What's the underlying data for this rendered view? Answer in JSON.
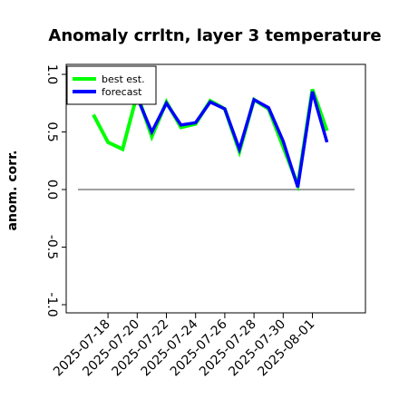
{
  "chart_data": {
    "type": "line",
    "title": "Anomaly crrltn, layer 3 temperature",
    "xlabel": "",
    "ylabel": "anom. corr.",
    "ylim": [
      -1.0,
      1.0
    ],
    "yticks": [
      "-1.0",
      "-0.5",
      "0.0",
      "0.5",
      "1.0"
    ],
    "ytick_values": [
      -1.0,
      -0.5,
      0.0,
      0.5,
      1.0
    ],
    "x": [
      "2025-07-17",
      "2025-07-18",
      "2025-07-19",
      "2025-07-20",
      "2025-07-21",
      "2025-07-22",
      "2025-07-23",
      "2025-07-24",
      "2025-07-25",
      "2025-07-26",
      "2025-07-27",
      "2025-07-28",
      "2025-07-29",
      "2025-07-30",
      "2025-07-31",
      "2025-08-01",
      "2025-08-02"
    ],
    "xticks": [
      "2025-07-18",
      "2025-07-20",
      "2025-07-22",
      "2025-07-24",
      "2025-07-26",
      "2025-07-28",
      "2025-07-30",
      "2025-08-01"
    ],
    "xtick_colors": [
      "#000000",
      "#000000",
      "#000000",
      "#008000",
      "#000000",
      "#000000",
      "#000000",
      "#000000"
    ],
    "reference_line": 0.0,
    "grid": false,
    "legend_position": "top-left",
    "series": [
      {
        "name": "best est.",
        "color": "#00ff00",
        "values": [
          0.65,
          0.41,
          0.35,
          0.83,
          0.46,
          0.76,
          0.54,
          0.57,
          0.77,
          0.7,
          0.33,
          0.78,
          0.7,
          0.37,
          0.04,
          0.87,
          0.51
        ]
      },
      {
        "name": "forecast",
        "color": "#0000ff",
        "values": [
          null,
          null,
          null,
          0.8,
          0.5,
          0.75,
          0.56,
          0.58,
          0.76,
          0.7,
          0.35,
          0.78,
          0.71,
          0.42,
          0.02,
          0.85,
          0.41
        ]
      }
    ]
  }
}
